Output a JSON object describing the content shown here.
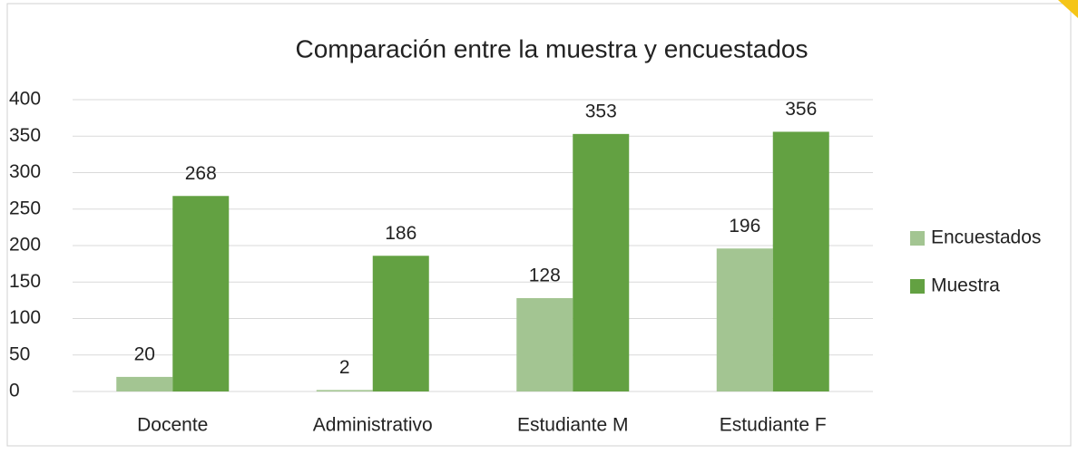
{
  "chart_data": {
    "type": "bar",
    "title": "Comparación entre la muestra y encuestados",
    "categories": [
      "Docente",
      "Administrativo",
      "Estudiante M",
      "Estudiante F"
    ],
    "series": [
      {
        "name": "Encuestados",
        "color": "#a3c592",
        "values": [
          20,
          2,
          128,
          196
        ]
      },
      {
        "name": "Muestra",
        "color": "#63a142",
        "values": [
          268,
          186,
          353,
          356
        ]
      }
    ],
    "ylim": [
      0,
      400
    ],
    "yticks": [
      0,
      50,
      100,
      150,
      200,
      250,
      300,
      350,
      400
    ],
    "grid": true,
    "legend": "right"
  }
}
